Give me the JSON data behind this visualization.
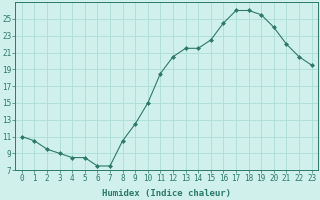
{
  "x": [
    0,
    1,
    2,
    3,
    4,
    5,
    6,
    7,
    8,
    9,
    10,
    11,
    12,
    13,
    14,
    15,
    16,
    17,
    18,
    19,
    20,
    21,
    22,
    23
  ],
  "y": [
    11,
    10.5,
    9.5,
    9,
    8.5,
    8.5,
    7.5,
    7.5,
    10.5,
    12.5,
    15,
    18.5,
    20.5,
    21.5,
    21.5,
    22.5,
    24.5,
    26,
    26,
    25.5,
    24,
    22,
    20.5,
    19.5
  ],
  "line_color": "#2d7a6a",
  "marker_color": "#2d7a6a",
  "bg_color": "#cff0eb",
  "grid_color": "#aaddd6",
  "xlabel": "Humidex (Indice chaleur)",
  "ylim": [
    7,
    27
  ],
  "xlim": [
    -0.5,
    23.5
  ],
  "yticks": [
    7,
    9,
    11,
    13,
    15,
    17,
    19,
    21,
    23,
    25
  ],
  "xticks": [
    0,
    1,
    2,
    3,
    4,
    5,
    6,
    7,
    8,
    9,
    10,
    11,
    12,
    13,
    14,
    15,
    16,
    17,
    18,
    19,
    20,
    21,
    22,
    23
  ],
  "xtick_labels": [
    "0",
    "1",
    "2",
    "3",
    "4",
    "5",
    "6",
    "7",
    "8",
    "9",
    "10",
    "11",
    "12",
    "13",
    "14",
    "15",
    "16",
    "17",
    "18",
    "19",
    "20",
    "21",
    "22",
    "23"
  ],
  "label_fontsize": 6.5,
  "tick_fontsize": 5.5,
  "marker_size": 2.0,
  "linewidth": 0.8
}
